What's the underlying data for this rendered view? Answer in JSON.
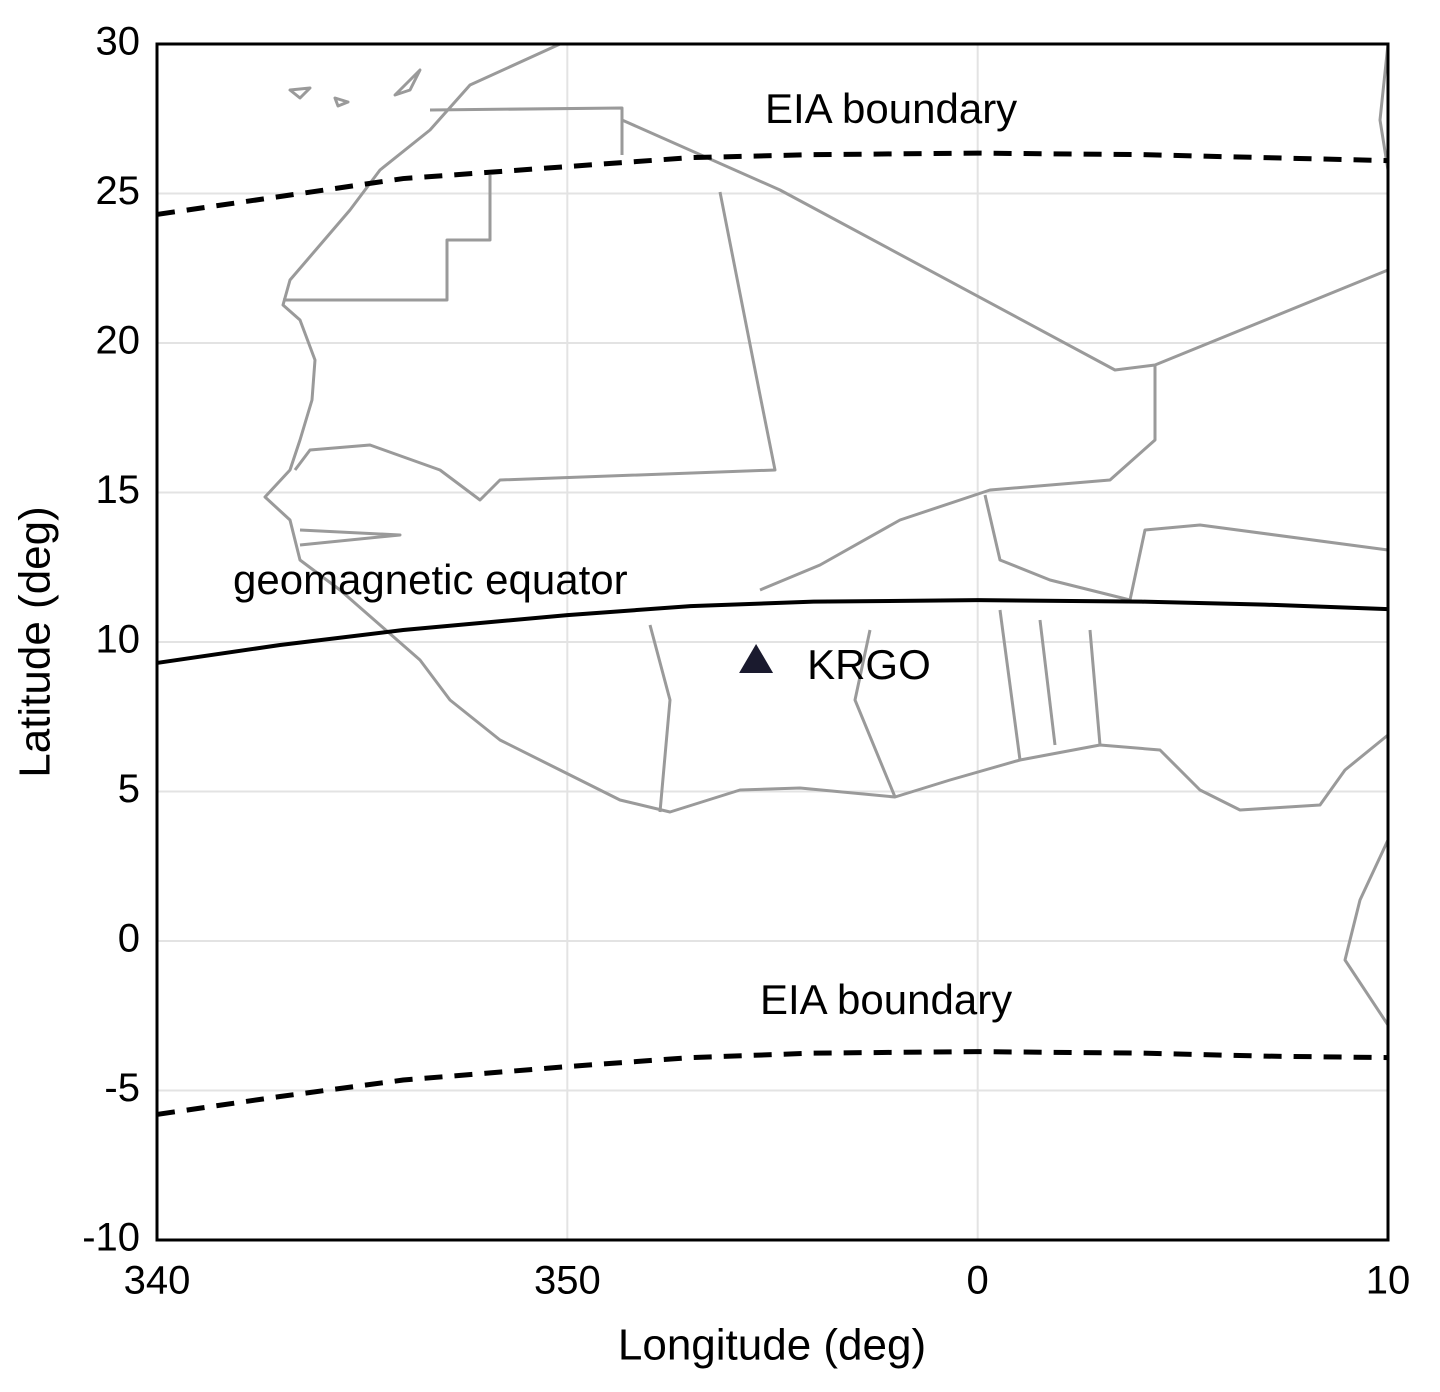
{
  "chart_data": {
    "type": "line",
    "x_label": "Longitude (deg)",
    "y_label": "Latitude (deg)",
    "xlim": [
      340,
      370
    ],
    "ylim": [
      -10,
      30
    ],
    "xticks": [
      340,
      350,
      {
        "value": 360,
        "label": "0"
      },
      {
        "value": 370,
        "label": "10"
      }
    ],
    "yticks": [
      -10,
      -5,
      0,
      5,
      10,
      15,
      20,
      25,
      30
    ],
    "grid": true,
    "series": [
      {
        "name": "EIA boundary",
        "color": "#000000",
        "style": "dashed",
        "x": [
          340,
          343,
          346,
          350,
          353,
          356,
          360,
          364,
          367,
          370
        ],
        "values": [
          24.3,
          24.9,
          25.5,
          25.9,
          26.2,
          26.3,
          26.35,
          26.3,
          26.2,
          26.1
        ]
      },
      {
        "name": "geomagnetic equator",
        "color": "#000000",
        "style": "solid",
        "x": [
          340,
          343,
          346,
          350,
          353,
          356,
          360,
          364,
          367,
          370
        ],
        "values": [
          9.3,
          9.9,
          10.4,
          10.9,
          11.2,
          11.35,
          11.4,
          11.35,
          11.25,
          11.1
        ]
      },
      {
        "name": "EIA boundary",
        "color": "#000000",
        "style": "dashed",
        "x": [
          340,
          343,
          346,
          350,
          353,
          356,
          360,
          364,
          367,
          370
        ],
        "values": [
          -5.8,
          -5.2,
          -4.65,
          -4.2,
          -3.9,
          -3.75,
          -3.7,
          -3.75,
          -3.85,
          -3.9
        ]
      }
    ],
    "station": {
      "name": "KRGO",
      "x": 354.6,
      "y": 9.4,
      "color": "#1a1a2e"
    }
  }
}
